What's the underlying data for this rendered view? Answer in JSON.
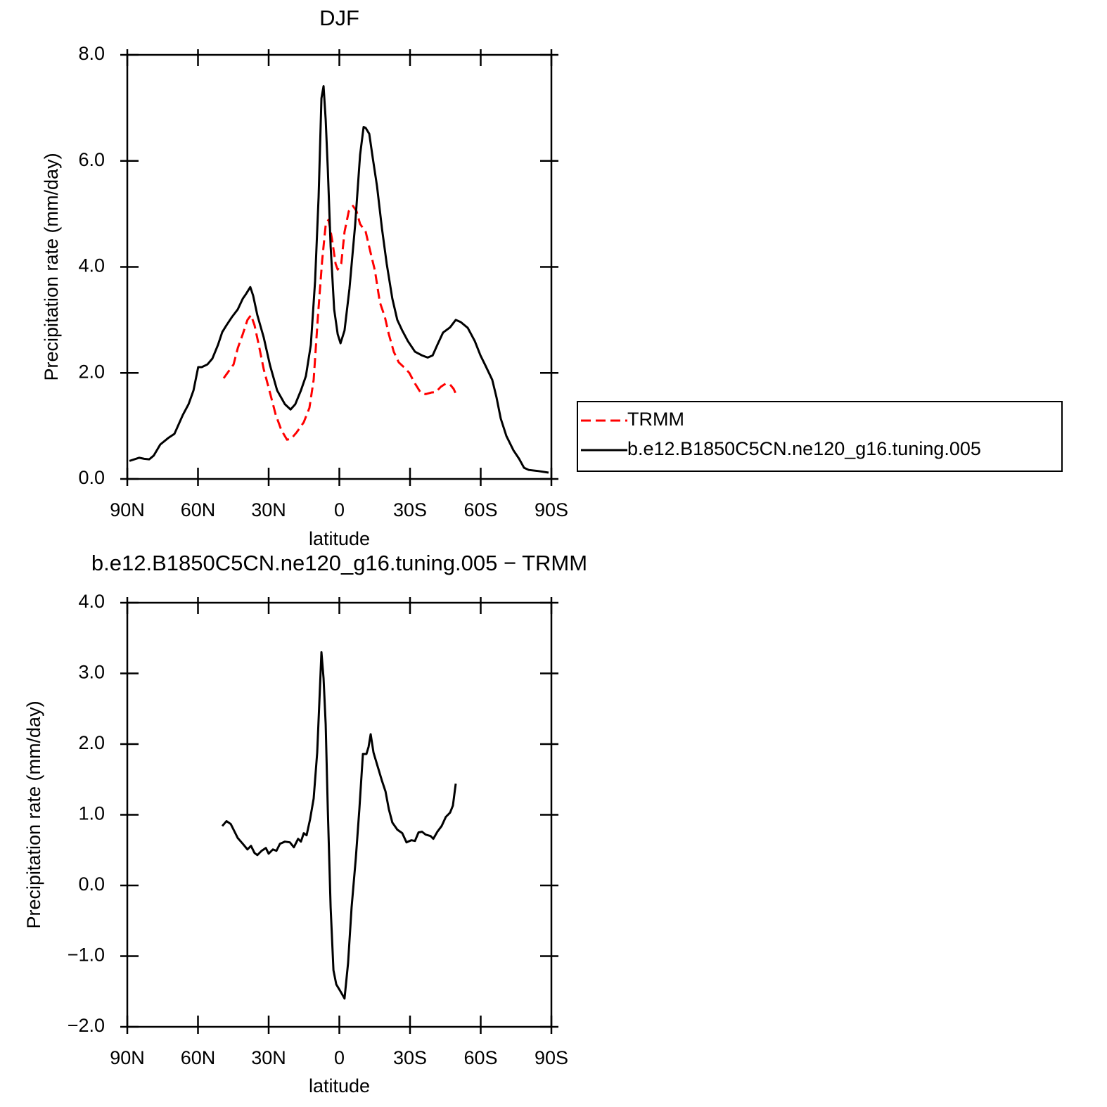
{
  "chart_data": [
    {
      "type": "line",
      "title": "DJF",
      "xlabel": "latitude",
      "ylabel": "Precipitation rate (mm/day)",
      "xlim": [
        90,
        -90
      ],
      "xticks": [
        {
          "value": 90,
          "label": "90N"
        },
        {
          "value": 60,
          "label": "60N"
        },
        {
          "value": 30,
          "label": "30N"
        },
        0,
        {
          "value": -30,
          "label": "30S"
        },
        {
          "value": -60,
          "label": "60S"
        },
        {
          "value": -90,
          "label": "90S"
        }
      ],
      "ylim": [
        0,
        8
      ],
      "yticks": [
        {
          "value": 0,
          "label": "0.0"
        },
        {
          "value": 2,
          "label": "2.0"
        },
        {
          "value": 4,
          "label": "4.0"
        },
        {
          "value": 6,
          "label": "6.0"
        },
        {
          "value": 8,
          "label": "8.0"
        }
      ],
      "legend": "right",
      "series": [
        {
          "name": "TRMM",
          "color": "#ff0000",
          "linestyle": "dashed",
          "x": [
            49.1,
            47.0,
            44.9,
            43.1,
            41.0,
            39.0,
            37.5,
            36.0,
            34.2,
            32.1,
            29.7,
            27.0,
            24.6,
            22.2,
            20.4,
            18.1,
            15.1,
            12.7,
            10.9,
            9.1,
            7.3,
            5.8,
            4.6,
            3.1,
            1.6,
            0.7,
            -0.8,
            -2.2,
            -4.0,
            -5.8,
            -7.3,
            -8.8,
            -11.2,
            -13.3,
            -15.1,
            -17.2,
            -19.3,
            -21.0,
            -23.1,
            -25.2,
            -27.6,
            -29.7,
            -32.1,
            -34.5,
            -36.6,
            -39.0,
            -41.0,
            -43.1,
            -45.2,
            -47.0,
            -48.5,
            -49.7
          ],
          "values": [
            1.9,
            2.03,
            2.16,
            2.47,
            2.73,
            3.0,
            3.09,
            2.9,
            2.53,
            2.07,
            1.67,
            1.21,
            0.92,
            0.74,
            0.76,
            0.88,
            1.07,
            1.34,
            1.87,
            3.06,
            4.12,
            4.79,
            4.89,
            4.52,
            4.06,
            3.95,
            4.06,
            4.66,
            5.05,
            5.15,
            5.05,
            4.81,
            4.66,
            4.26,
            3.93,
            3.33,
            3.06,
            2.73,
            2.4,
            2.2,
            2.1,
            2.0,
            1.8,
            1.63,
            1.6,
            1.63,
            1.64,
            1.74,
            1.8,
            1.78,
            1.7,
            1.58
          ]
        },
        {
          "name": "b.e12.B1850C5CN.ne120_g16.tuning.005",
          "color": "#000000",
          "linestyle": "solid",
          "x": [
            89.1,
            84.9,
            82.8,
            80.7,
            78.8,
            76.0,
            72.4,
            70.0,
            66.4,
            64.0,
            61.9,
            59.9,
            58.4,
            56.0,
            53.9,
            51.5,
            49.7,
            47.9,
            45.5,
            43.1,
            41.0,
            39.6,
            37.8,
            36.6,
            34.8,
            32.1,
            29.4,
            26.4,
            23.1,
            20.7,
            18.7,
            16.3,
            14.2,
            12.1,
            10.3,
            8.8,
            7.6,
            6.7,
            5.8,
            4.9,
            3.7,
            2.2,
            0.7,
            -0.5,
            -2.2,
            -4.3,
            -6.7,
            -8.8,
            -10.3,
            -11.2,
            -12.7,
            -14.2,
            -16.0,
            -18.1,
            -20.1,
            -22.5,
            -24.6,
            -26.7,
            -29.1,
            -32.1,
            -35.1,
            -37.5,
            -39.6,
            -41.6,
            -44.0,
            -47.0,
            -49.4,
            -51.5,
            -54.5,
            -57.5,
            -59.9,
            -62.0,
            -64.9,
            -66.7,
            -68.5,
            -70.9,
            -73.9,
            -76.3,
            -78.4,
            -80.4,
            -84.3,
            -88.8
          ],
          "values": [
            0.34,
            0.4,
            0.38,
            0.37,
            0.44,
            0.65,
            0.78,
            0.85,
            1.21,
            1.41,
            1.67,
            2.11,
            2.11,
            2.16,
            2.27,
            2.53,
            2.77,
            2.9,
            3.06,
            3.2,
            3.4,
            3.49,
            3.62,
            3.46,
            3.09,
            2.67,
            2.14,
            1.67,
            1.41,
            1.31,
            1.41,
            1.67,
            1.94,
            2.53,
            3.73,
            5.32,
            7.18,
            7.41,
            6.78,
            5.85,
            4.39,
            3.2,
            2.73,
            2.56,
            2.8,
            3.59,
            4.79,
            6.11,
            6.64,
            6.62,
            6.51,
            6.05,
            5.52,
            4.72,
            4.06,
            3.4,
            3.0,
            2.8,
            2.6,
            2.4,
            2.33,
            2.29,
            2.33,
            2.53,
            2.76,
            2.86,
            3.0,
            2.96,
            2.85,
            2.6,
            2.33,
            2.14,
            1.87,
            1.54,
            1.14,
            0.81,
            0.54,
            0.38,
            0.21,
            0.17,
            0.15,
            0.12
          ]
        }
      ]
    },
    {
      "type": "line",
      "title": "b.e12.B1850C5CN.ne120_g16.tuning.005 − TRMM",
      "xlabel": "latitude",
      "ylabel": "Precipitation rate (mm/day)",
      "xlim": [
        90,
        -90
      ],
      "xticks": [
        {
          "value": 90,
          "label": "90N"
        },
        {
          "value": 60,
          "label": "60N"
        },
        {
          "value": 30,
          "label": "30N"
        },
        0,
        {
          "value": -30,
          "label": "30S"
        },
        {
          "value": -60,
          "label": "60S"
        },
        {
          "value": -90,
          "label": "90S"
        }
      ],
      "ylim": [
        -2,
        4
      ],
      "yticks": [
        {
          "value": -2,
          "label": "−2.0"
        },
        {
          "value": -1,
          "label": "−1.0"
        },
        {
          "value": 0,
          "label": "0.0"
        },
        {
          "value": 1,
          "label": "1.0"
        },
        {
          "value": 2,
          "label": "2.0"
        },
        {
          "value": 3,
          "label": "3.0"
        },
        {
          "value": 4,
          "label": "4.0"
        }
      ],
      "series": [
        {
          "color": "#000000",
          "linestyle": "solid",
          "x": [
            49.7,
            47.9,
            46.1,
            44.6,
            43.1,
            41.0,
            39.0,
            37.5,
            36.0,
            34.8,
            33.0,
            31.2,
            30.0,
            28.2,
            26.7,
            25.2,
            23.1,
            21.0,
            19.3,
            17.5,
            16.3,
            15.1,
            13.9,
            12.4,
            10.9,
            9.4,
            8.5,
            7.6,
            6.7,
            5.8,
            4.9,
            3.7,
            2.5,
            1.3,
            -0.5,
            -2.2,
            -3.7,
            -5.2,
            -7.0,
            -8.5,
            -10.0,
            -11.5,
            -12.4,
            -13.3,
            -14.5,
            -16.3,
            -18.1,
            -19.6,
            -21.0,
            -22.5,
            -24.6,
            -26.7,
            -28.5,
            -30.6,
            -32.1,
            -33.6,
            -35.1,
            -36.6,
            -38.7,
            -39.9,
            -41.6,
            -43.4,
            -45.2,
            -47.0,
            -48.2,
            -49.4
          ],
          "values": [
            0.84,
            0.91,
            0.87,
            0.77,
            0.67,
            0.59,
            0.51,
            0.56,
            0.46,
            0.43,
            0.49,
            0.53,
            0.45,
            0.51,
            0.49,
            0.59,
            0.62,
            0.61,
            0.54,
            0.66,
            0.62,
            0.74,
            0.71,
            0.94,
            1.23,
            1.88,
            2.58,
            3.3,
            2.93,
            2.28,
            1.08,
            -0.31,
            -1.2,
            -1.4,
            -1.5,
            -1.6,
            -1.1,
            -0.31,
            0.39,
            1.08,
            1.86,
            1.86,
            1.96,
            2.14,
            1.88,
            1.68,
            1.48,
            1.33,
            1.08,
            0.89,
            0.79,
            0.74,
            0.61,
            0.64,
            0.63,
            0.75,
            0.76,
            0.72,
            0.7,
            0.66,
            0.76,
            0.84,
            0.97,
            1.03,
            1.13,
            1.44
          ]
        }
      ]
    }
  ]
}
